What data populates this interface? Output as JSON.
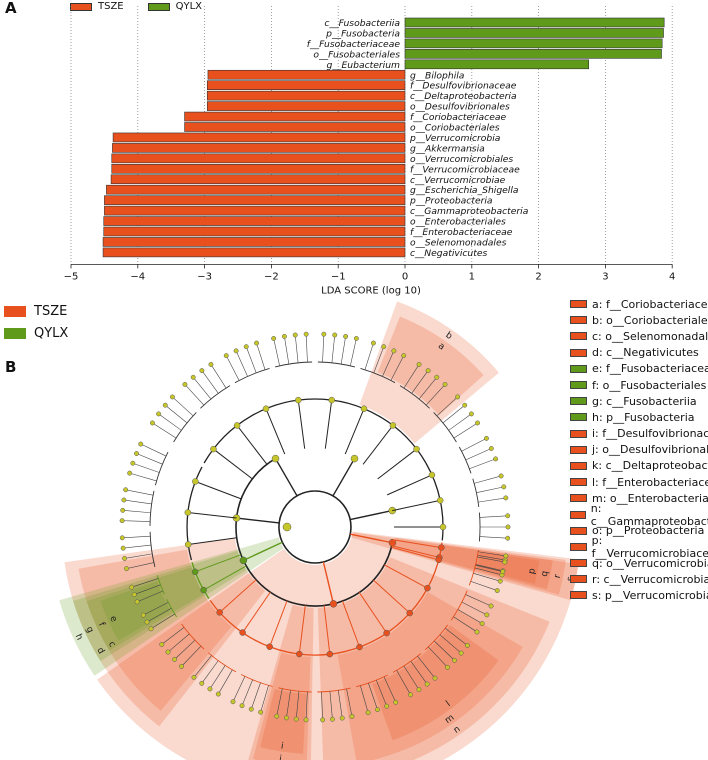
{
  "panels": {
    "a": "A",
    "b": "B"
  },
  "colors": {
    "TSZE": "#e8501e",
    "QYLX": "#5f9a1a"
  },
  "top_legend": [
    {
      "label": "TSZE",
      "color": "#e8501e"
    },
    {
      "label": "QYLX",
      "color": "#5f9a1a"
    }
  ],
  "group_legend": [
    {
      "label": "TSZE",
      "color": "#e8501e"
    },
    {
      "label": "QYLX",
      "color": "#5f9a1a"
    }
  ],
  "chart_data": [
    {
      "type": "bar",
      "orientation": "horizontal",
      "title": "",
      "xlabel": "LDA SCORE (log 10)",
      "xlim": [
        -5,
        4
      ],
      "xticks": [
        "−5",
        "−4",
        "−3",
        "−2",
        "−1",
        "0",
        "1",
        "2",
        "3",
        "4"
      ],
      "grid": "vertical dashed",
      "categories": [
        "c__Fusobacteriia",
        "p__Fusobacteria",
        "f__Fusobacteriaceae",
        "o__Fusobacteriales",
        "g__Eubacterium",
        "g__Bilophila",
        "f__Desulfovibrionaceae",
        "c__Deltaproteobacteria",
        "o__Desulfovibrionales",
        "f__Coriobacteriaceae",
        "o__Coriobacteriales",
        "p__Verrucomicrobia",
        "g__Akkermansia",
        "o__Verrucomicrobiales",
        "f__Verrucomicrobiaceae",
        "c__Verrucomicrobiae",
        "g__Escherichia_Shigella",
        "p__Proteobacteria",
        "c__Gammaproteobacteria",
        "o__Enterobacteriales",
        "f__Enterobacteriaceae",
        "o__Selenomonadales",
        "c__Negativicutes"
      ],
      "values": [
        3.88,
        3.87,
        3.85,
        3.84,
        2.75,
        -2.95,
        -2.96,
        -2.96,
        -2.96,
        -3.3,
        -3.3,
        -4.37,
        -4.38,
        -4.39,
        -4.39,
        -4.4,
        -4.47,
        -4.5,
        -4.5,
        -4.51,
        -4.51,
        -4.52,
        -4.52
      ],
      "groups": [
        "QYLX",
        "QYLX",
        "QYLX",
        "QYLX",
        "QYLX",
        "TSZE",
        "TSZE",
        "TSZE",
        "TSZE",
        "TSZE",
        "TSZE",
        "TSZE",
        "TSZE",
        "TSZE",
        "TSZE",
        "TSZE",
        "TSZE",
        "TSZE",
        "TSZE",
        "TSZE",
        "TSZE",
        "TSZE",
        "TSZE"
      ]
    },
    {
      "type": "cladogram",
      "title": "",
      "highlights": [
        {
          "letter": "a",
          "group": "TSZE"
        },
        {
          "letter": "b",
          "group": "TSZE"
        },
        {
          "letter": "c",
          "group": "TSZE"
        },
        {
          "letter": "d",
          "group": "TSZE"
        },
        {
          "letter": "e",
          "group": "QYLX"
        },
        {
          "letter": "f",
          "group": "QYLX"
        },
        {
          "letter": "g",
          "group": "QYLX"
        },
        {
          "letter": "h",
          "group": "QYLX"
        },
        {
          "letter": "i",
          "group": "TSZE"
        },
        {
          "letter": "j",
          "group": "TSZE"
        },
        {
          "letter": "k",
          "group": "TSZE"
        },
        {
          "letter": "l",
          "group": "TSZE"
        },
        {
          "letter": "m",
          "group": "TSZE"
        },
        {
          "letter": "n",
          "group": "TSZE"
        },
        {
          "letter": "o",
          "group": "TSZE"
        },
        {
          "letter": "p",
          "group": "TSZE"
        },
        {
          "letter": "q",
          "group": "TSZE"
        },
        {
          "letter": "r",
          "group": "TSZE"
        },
        {
          "letter": "s",
          "group": "TSZE"
        }
      ],
      "legend": [
        {
          "text": "a: f__Coriobacteriaceae",
          "group": "TSZE"
        },
        {
          "text": "b: o__Coriobacteriales",
          "group": "TSZE"
        },
        {
          "text": "c: o__Selenomonadales",
          "group": "TSZE"
        },
        {
          "text": "d: c__Negativicutes",
          "group": "TSZE"
        },
        {
          "text": "e: f__Fusobacteriaceae",
          "group": "QYLX"
        },
        {
          "text": "f: o__Fusobacteriales",
          "group": "QYLX"
        },
        {
          "text": "g: c__Fusobacteriia",
          "group": "QYLX"
        },
        {
          "text": "h: p__Fusobacteria",
          "group": "QYLX"
        },
        {
          "text": "i: f__Desulfovibrionaceae",
          "group": "TSZE"
        },
        {
          "text": "j: o__Desulfovibrionales",
          "group": "TSZE"
        },
        {
          "text": "k: c__Deltaproteobacteria",
          "group": "TSZE"
        },
        {
          "text": "l: f__Enterobacteriaceae",
          "group": "TSZE"
        },
        {
          "text": "m: o__Enterobacteriales",
          "group": "TSZE"
        },
        {
          "text": "n: c__Gammaproteobacteria",
          "group": "TSZE"
        },
        {
          "text": "o: p__Proteobacteria",
          "group": "TSZE"
        },
        {
          "text": "p: f__Verrucomicrobiaceae",
          "group": "TSZE"
        },
        {
          "text": "q: o__Verrucomicrobiales",
          "group": "TSZE"
        },
        {
          "text": "r: c__Verrucomicrobiae",
          "group": "TSZE"
        },
        {
          "text": "s: p__Verrucomicrobia",
          "group": "TSZE"
        }
      ]
    }
  ]
}
